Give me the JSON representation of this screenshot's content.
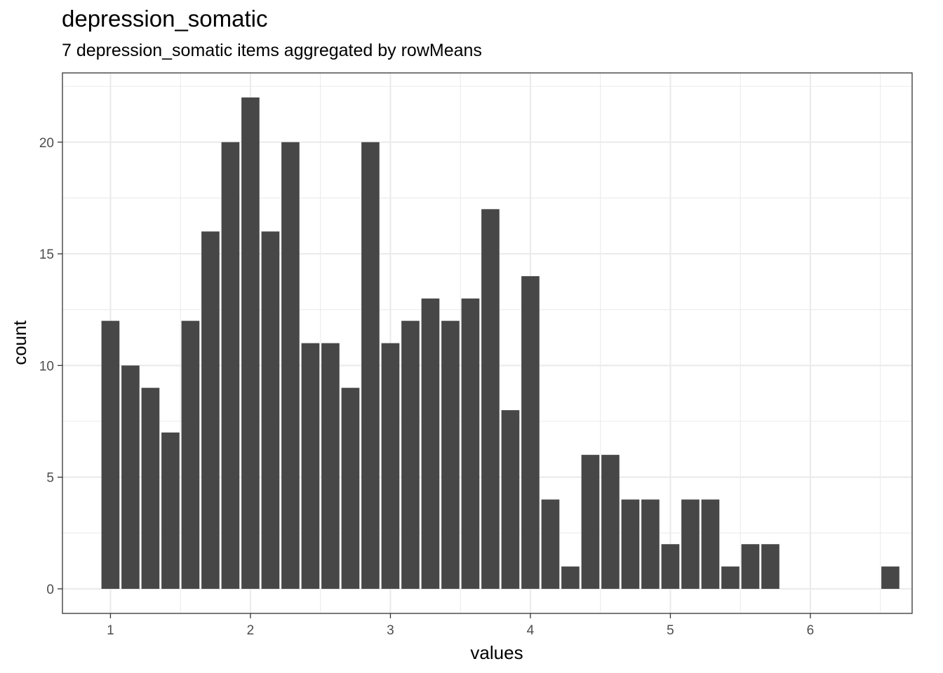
{
  "chart_data": {
    "type": "bar",
    "title": "depression_somatic",
    "subtitle": "7 depression_somatic items aggregated by rowMeans",
    "xlabel": "values",
    "ylabel": "count",
    "xlim": [
      0.657,
      6.727
    ],
    "ylim": [
      -1.1,
      23.1
    ],
    "xticks": [
      1,
      2,
      3,
      4,
      5,
      6
    ],
    "yticks": [
      0,
      5,
      10,
      15,
      20
    ],
    "bin_width": 0.1286,
    "x": [
      1.0,
      1.1429,
      1.2857,
      1.4286,
      1.5714,
      1.7143,
      1.8571,
      2.0,
      2.1429,
      2.2857,
      2.4286,
      2.5714,
      2.7143,
      2.8571,
      3.0,
      3.1429,
      3.2857,
      3.4286,
      3.5714,
      3.7143,
      3.8571,
      4.0,
      4.1429,
      4.2857,
      4.4286,
      4.5714,
      4.7143,
      4.8571,
      5.0,
      5.1429,
      5.2857,
      5.4286,
      5.5714,
      5.7143,
      6.5714
    ],
    "values": [
      12,
      10,
      9,
      7,
      12,
      16,
      20,
      22,
      16,
      20,
      11,
      11,
      9,
      20,
      11,
      12,
      13,
      12,
      13,
      17,
      8,
      14,
      4,
      1,
      6,
      6,
      4,
      4,
      2,
      4,
      4,
      1,
      2,
      2,
      1
    ],
    "bar_color": "#474747",
    "grid": true
  }
}
